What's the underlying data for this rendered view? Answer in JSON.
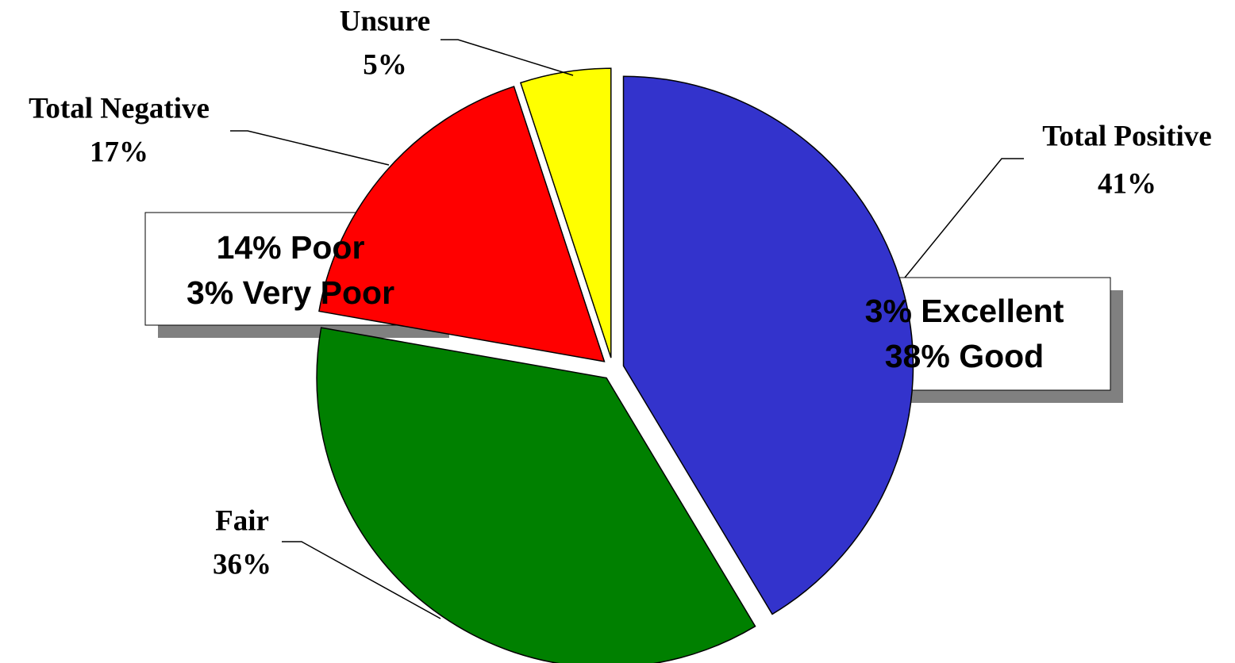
{
  "chart_data": {
    "type": "pie",
    "categories": [
      "Total Positive",
      "Fair",
      "Total Negative",
      "Unsure"
    ],
    "values": [
      41,
      36,
      17,
      5
    ],
    "value_labels": [
      "41%",
      "36%",
      "17%",
      "5%"
    ],
    "colors": [
      "#3333cc",
      "#008000",
      "#ff0000",
      "#ffff00"
    ],
    "annotations": [
      [
        "14% Poor",
        "3% Very Poor"
      ],
      [
        "3% Excellent",
        "38% Good"
      ]
    ]
  }
}
